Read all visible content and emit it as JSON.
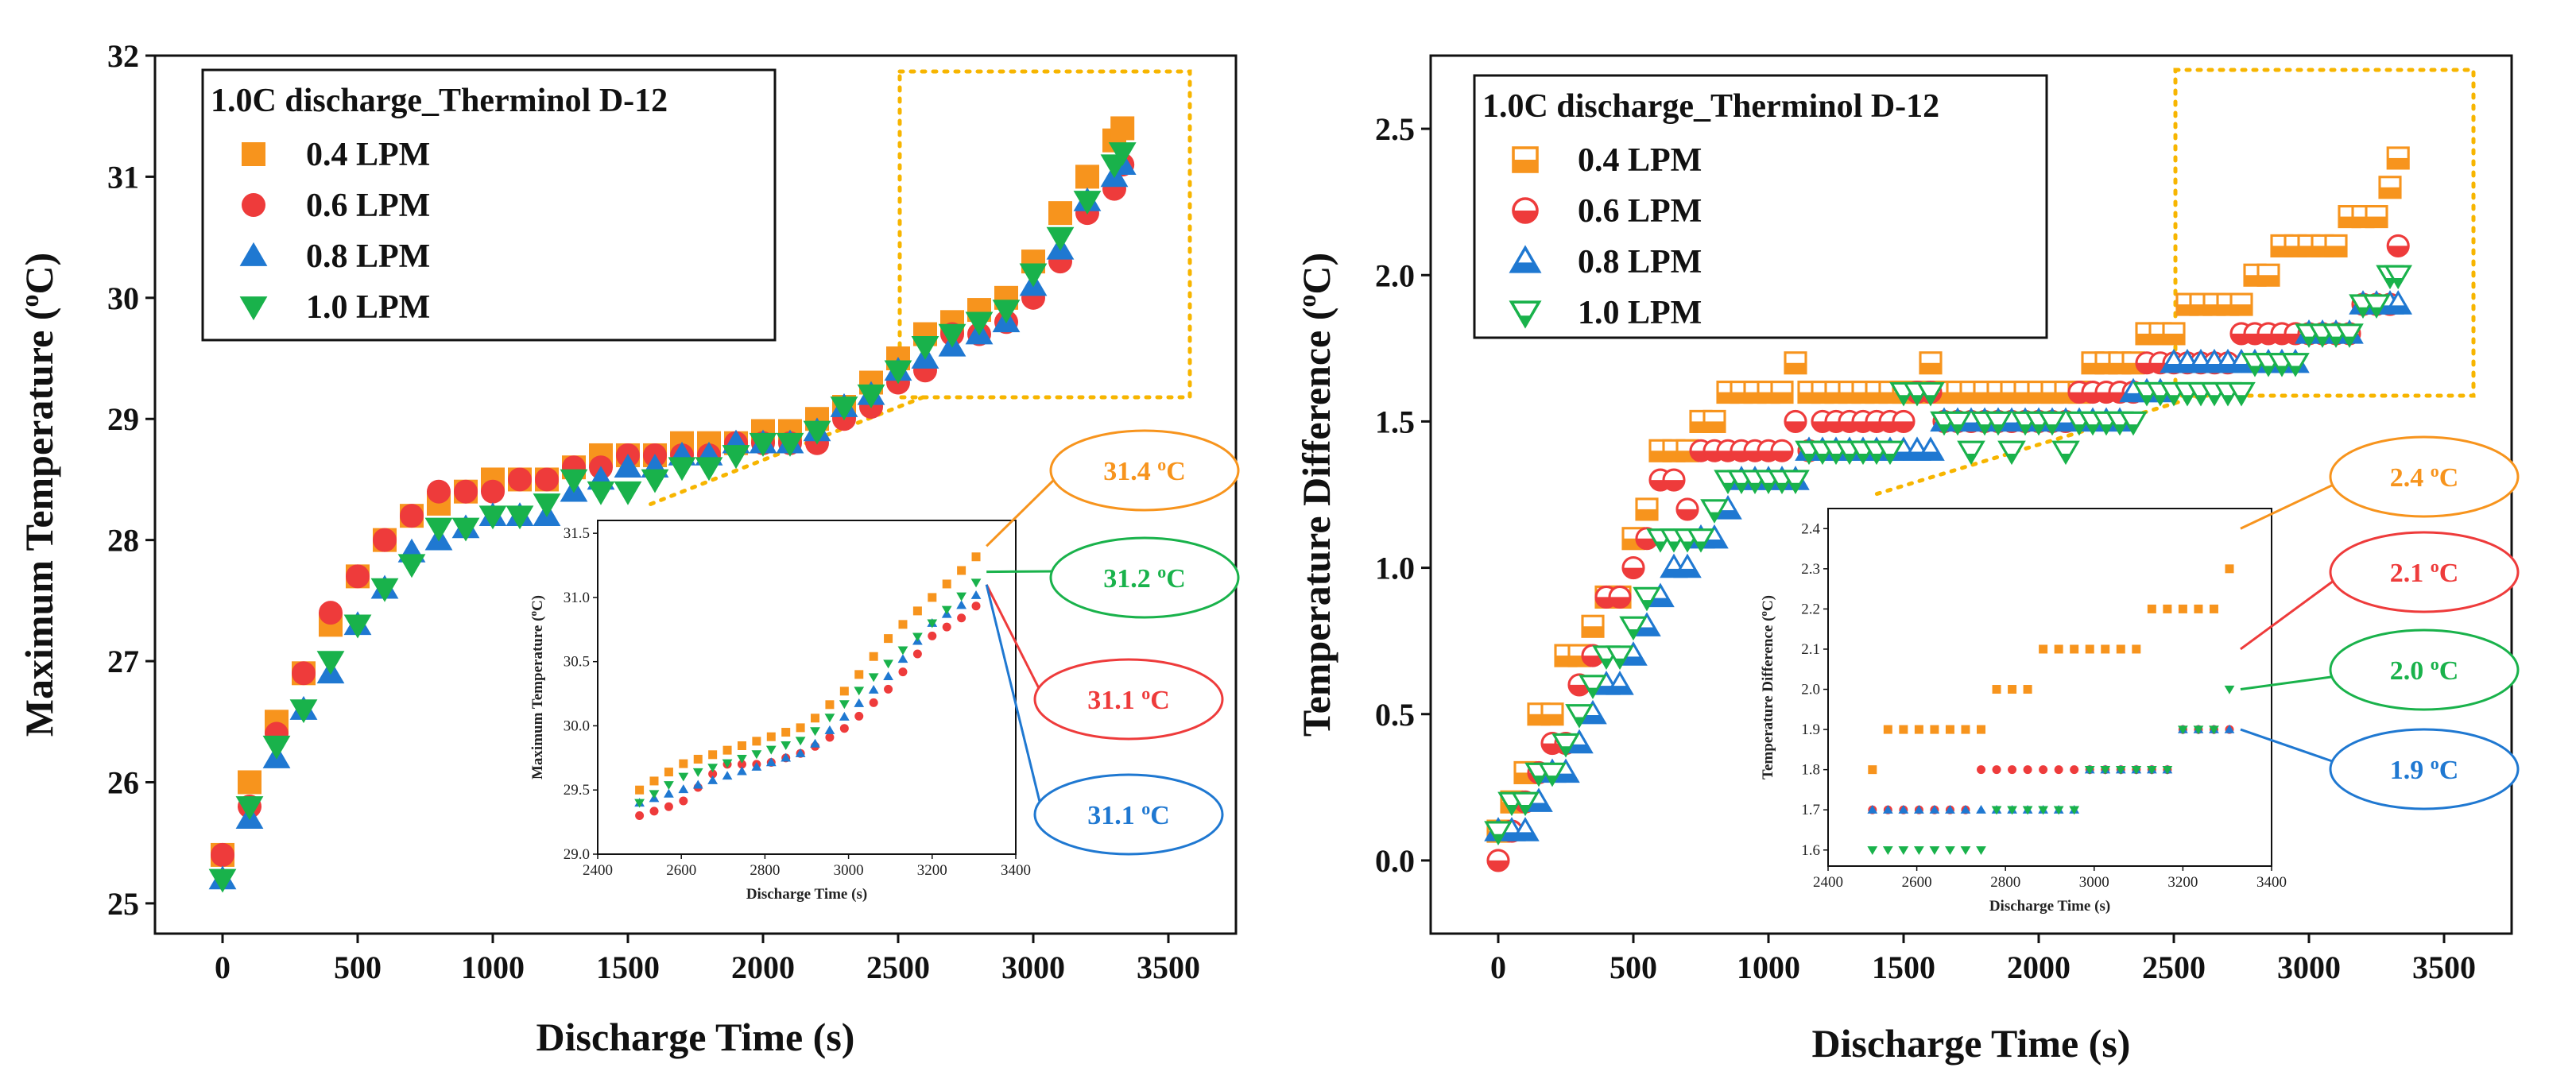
{
  "colors": {
    "lpm04": "#F7941D",
    "lpm06": "#EE3B3B",
    "lpm08": "#1F78D1",
    "lpm10": "#19B24B",
    "zoom_box": "#F7B500"
  },
  "chart_data": [
    {
      "type": "scatter",
      "xlabel": "Discharge Time (s)",
      "ylabel": "Maximum Temperature (°C)",
      "ylabel_parts": {
        "prefix": "Maximum Temperature (",
        "sup": "o",
        "suffix": "C)"
      },
      "xlim": [
        -250,
        3750
      ],
      "ylim": [
        24.75,
        32
      ],
      "xticks": [
        "0",
        "500",
        "1000",
        "1500",
        "2000",
        "2500",
        "3000",
        "3500"
      ],
      "yticks": [
        "25",
        "26",
        "27",
        "28",
        "29",
        "30",
        "31",
        "32"
      ],
      "legend_title": "1.0C discharge_Therminol D-12",
      "series": [
        {
          "name": "0.4 LPM",
          "marker": "square",
          "color": "#F7941D",
          "x": [
            0,
            100,
            200,
            300,
            400,
            500,
            600,
            700,
            800,
            900,
            1000,
            1100,
            1200,
            1300,
            1400,
            1500,
            1600,
            1700,
            1800,
            1900,
            2000,
            2100,
            2200,
            2300,
            2400,
            2500,
            2600,
            2700,
            2800,
            2900,
            3000,
            3100,
            3200,
            3300,
            3330
          ],
          "y": [
            25.4,
            26.0,
            26.5,
            26.9,
            27.3,
            27.7,
            28.0,
            28.2,
            28.3,
            28.4,
            28.5,
            28.5,
            28.5,
            28.6,
            28.7,
            28.7,
            28.7,
            28.8,
            28.8,
            28.8,
            28.9,
            28.9,
            29.0,
            29.1,
            29.3,
            29.5,
            29.7,
            29.8,
            29.9,
            30.0,
            30.3,
            30.7,
            31.0,
            31.3,
            31.4
          ]
        },
        {
          "name": "0.6 LPM",
          "marker": "circle",
          "color": "#EE3B3B",
          "x": [
            0,
            100,
            200,
            300,
            400,
            500,
            600,
            700,
            800,
            900,
            1000,
            1100,
            1200,
            1300,
            1400,
            1500,
            1600,
            1700,
            1800,
            1900,
            2000,
            2100,
            2200,
            2300,
            2400,
            2500,
            2600,
            2700,
            2800,
            2900,
            3000,
            3100,
            3200,
            3300,
            3330
          ],
          "y": [
            25.4,
            25.8,
            26.4,
            26.9,
            27.4,
            27.7,
            28.0,
            28.2,
            28.4,
            28.4,
            28.4,
            28.5,
            28.5,
            28.6,
            28.6,
            28.7,
            28.7,
            28.7,
            28.7,
            28.8,
            28.8,
            28.8,
            28.8,
            29.0,
            29.1,
            29.3,
            29.4,
            29.7,
            29.7,
            29.8,
            30.0,
            30.3,
            30.7,
            30.9,
            31.1
          ]
        },
        {
          "name": "0.8 LPM",
          "marker": "triangle-up",
          "color": "#1F78D1",
          "x": [
            0,
            100,
            200,
            300,
            400,
            500,
            600,
            700,
            800,
            900,
            1000,
            1100,
            1200,
            1300,
            1400,
            1500,
            1600,
            1700,
            1800,
            1900,
            2000,
            2100,
            2200,
            2300,
            2400,
            2500,
            2600,
            2700,
            2800,
            2900,
            3000,
            3100,
            3200,
            3300,
            3330
          ],
          "y": [
            25.2,
            25.7,
            26.2,
            26.6,
            26.9,
            27.3,
            27.6,
            27.9,
            28.0,
            28.1,
            28.2,
            28.2,
            28.2,
            28.4,
            28.5,
            28.6,
            28.6,
            28.7,
            28.7,
            28.8,
            28.8,
            28.8,
            28.9,
            29.1,
            29.2,
            29.4,
            29.5,
            29.6,
            29.7,
            29.8,
            30.1,
            30.4,
            30.8,
            31.0,
            31.1
          ]
        },
        {
          "name": "1.0 LPM",
          "marker": "triangle-down",
          "color": "#19B24B",
          "x": [
            0,
            100,
            200,
            300,
            400,
            500,
            600,
            700,
            800,
            900,
            1000,
            1100,
            1200,
            1300,
            1400,
            1500,
            1600,
            1700,
            1800,
            1900,
            2000,
            2100,
            2200,
            2300,
            2400,
            2500,
            2600,
            2700,
            2800,
            2900,
            3000,
            3100,
            3200,
            3300,
            3330
          ],
          "y": [
            25.2,
            25.8,
            26.3,
            26.6,
            27.0,
            27.3,
            27.6,
            27.8,
            28.1,
            28.1,
            28.2,
            28.2,
            28.3,
            28.5,
            28.4,
            28.4,
            28.5,
            28.6,
            28.6,
            28.7,
            28.8,
            28.8,
            28.9,
            29.1,
            29.2,
            29.4,
            29.6,
            29.7,
            29.8,
            29.9,
            30.2,
            30.5,
            30.8,
            31.1,
            31.2
          ]
        }
      ],
      "inset": {
        "xlabel": "Discharge Time (s)",
        "ylabel": "Maximum Temperature (°C)",
        "ylabel_parts": {
          "prefix": "Maximum Temperature (",
          "sup": "o",
          "suffix": "C)"
        },
        "xlim": [
          2400,
          3400
        ],
        "ylim": [
          29.0,
          31.6
        ],
        "xticks": [
          "2400",
          "2600",
          "2800",
          "3000",
          "3200",
          "3400"
        ],
        "yticks": [
          "29.0",
          "29.5",
          "30.0",
          "30.5",
          "31.0",
          "31.5"
        ],
        "x_start": 2500,
        "x_step": 35
      },
      "callouts": [
        {
          "text": "31.4 ",
          "sup": "o",
          "unit": "C",
          "color": "#F7941D"
        },
        {
          "text": "31.2 ",
          "sup": "o",
          "unit": "C",
          "color": "#19B24B"
        },
        {
          "text": "31.1 ",
          "sup": "o",
          "unit": "C",
          "color": "#EE3B3B"
        },
        {
          "text": "31.1 ",
          "sup": "o",
          "unit": "C",
          "color": "#1F78D1"
        }
      ]
    },
    {
      "type": "scatter",
      "xlabel": "Discharge Time (s)",
      "ylabel": "Temperature Difference (°C)",
      "ylabel_parts": {
        "prefix": "Temperature Difference (",
        "sup": "o",
        "suffix": "C)"
      },
      "xlim": [
        -250,
        3750
      ],
      "ylim": [
        -0.25,
        2.75
      ],
      "xticks": [
        "0",
        "500",
        "1000",
        "1500",
        "2000",
        "2500",
        "3000",
        "3500"
      ],
      "yticks": [
        "0.0",
        "0.5",
        "1.0",
        "1.5",
        "2.0",
        "2.5"
      ],
      "legend_title": "1.0C discharge_Therminol D-12",
      "series": [
        {
          "name": "0.4 LPM",
          "marker": "square-half",
          "color": "#F7941D",
          "x": [
            0,
            50,
            100,
            150,
            200,
            250,
            300,
            350,
            400,
            450,
            500,
            550,
            600,
            650,
            700,
            750,
            800,
            850,
            900,
            950,
            1000,
            1050,
            1100,
            1150,
            1200,
            1250,
            1300,
            1350,
            1400,
            1450,
            1500,
            1550,
            1600,
            1650,
            1700,
            1750,
            1800,
            1850,
            1900,
            1950,
            2000,
            2050,
            2100,
            2150,
            2200,
            2250,
            2300,
            2350,
            2400,
            2450,
            2500,
            2550,
            2600,
            2650,
            2700,
            2750,
            2800,
            2850,
            2900,
            2950,
            3000,
            3050,
            3100,
            3150,
            3200,
            3250,
            3300,
            3330
          ],
          "y": [
            0.1,
            0.2,
            0.3,
            0.5,
            0.5,
            0.7,
            0.7,
            0.8,
            0.9,
            0.9,
            1.1,
            1.2,
            1.4,
            1.4,
            1.4,
            1.5,
            1.5,
            1.6,
            1.6,
            1.6,
            1.6,
            1.6,
            1.7,
            1.6,
            1.6,
            1.6,
            1.6,
            1.6,
            1.6,
            1.6,
            1.6,
            1.6,
            1.7,
            1.6,
            1.6,
            1.6,
            1.6,
            1.6,
            1.6,
            1.6,
            1.6,
            1.6,
            1.6,
            1.6,
            1.7,
            1.7,
            1.7,
            1.7,
            1.8,
            1.8,
            1.8,
            1.9,
            1.9,
            1.9,
            1.9,
            1.9,
            2.0,
            2.0,
            2.1,
            2.1,
            2.1,
            2.1,
            2.1,
            2.2,
            2.2,
            2.2,
            2.3,
            2.4
          ]
        },
        {
          "name": "0.6 LPM",
          "marker": "circle-half",
          "color": "#EE3B3B",
          "x": [
            0,
            50,
            100,
            150,
            200,
            250,
            300,
            350,
            400,
            450,
            500,
            550,
            600,
            650,
            700,
            750,
            800,
            850,
            900,
            950,
            1000,
            1050,
            1100,
            1150,
            1200,
            1250,
            1300,
            1350,
            1400,
            1450,
            1500,
            1550,
            1600,
            1650,
            1700,
            1750,
            1800,
            1850,
            1900,
            1950,
            2000,
            2050,
            2100,
            2150,
            2200,
            2250,
            2300,
            2350,
            2400,
            2450,
            2500,
            2550,
            2600,
            2650,
            2700,
            2750,
            2800,
            2850,
            2900,
            2950,
            3000,
            3050,
            3100,
            3150,
            3200,
            3250,
            3300,
            3330
          ],
          "y": [
            0.0,
            0.1,
            0.2,
            0.3,
            0.4,
            0.4,
            0.6,
            0.7,
            0.9,
            0.9,
            1.0,
            1.1,
            1.3,
            1.3,
            1.2,
            1.4,
            1.4,
            1.4,
            1.4,
            1.4,
            1.4,
            1.4,
            1.5,
            1.4,
            1.5,
            1.5,
            1.5,
            1.5,
            1.5,
            1.5,
            1.5,
            1.6,
            1.6,
            1.5,
            1.5,
            1.5,
            1.5,
            1.5,
            1.5,
            1.5,
            1.5,
            1.5,
            1.5,
            1.6,
            1.6,
            1.6,
            1.6,
            1.6,
            1.7,
            1.7,
            1.7,
            1.7,
            1.7,
            1.7,
            1.7,
            1.8,
            1.8,
            1.8,
            1.8,
            1.8,
            1.8,
            1.8,
            1.8,
            1.8,
            1.9,
            1.9,
            1.9,
            2.1
          ]
        },
        {
          "name": "0.8 LPM",
          "marker": "triangle-up-half",
          "color": "#1F78D1",
          "x": [
            0,
            50,
            100,
            150,
            200,
            250,
            300,
            350,
            400,
            450,
            500,
            550,
            600,
            650,
            700,
            750,
            800,
            850,
            900,
            950,
            1000,
            1050,
            1100,
            1150,
            1200,
            1250,
            1300,
            1350,
            1400,
            1450,
            1500,
            1550,
            1600,
            1650,
            1700,
            1750,
            1800,
            1850,
            1900,
            1950,
            2000,
            2050,
            2100,
            2150,
            2200,
            2250,
            2300,
            2350,
            2400,
            2450,
            2500,
            2550,
            2600,
            2650,
            2700,
            2750,
            2800,
            2850,
            2900,
            2950,
            3000,
            3050,
            3100,
            3150,
            3200,
            3250,
            3300,
            3330
          ],
          "y": [
            0.1,
            0.1,
            0.1,
            0.2,
            0.3,
            0.3,
            0.4,
            0.5,
            0.6,
            0.6,
            0.7,
            0.8,
            0.9,
            1.0,
            1.0,
            1.1,
            1.1,
            1.2,
            1.3,
            1.3,
            1.3,
            1.3,
            1.3,
            1.4,
            1.4,
            1.4,
            1.4,
            1.4,
            1.4,
            1.4,
            1.4,
            1.4,
            1.4,
            1.5,
            1.5,
            1.5,
            1.5,
            1.5,
            1.5,
            1.5,
            1.5,
            1.5,
            1.5,
            1.5,
            1.5,
            1.5,
            1.5,
            1.6,
            1.6,
            1.6,
            1.7,
            1.7,
            1.7,
            1.7,
            1.7,
            1.7,
            1.7,
            1.7,
            1.7,
            1.7,
            1.8,
            1.8,
            1.8,
            1.8,
            1.9,
            1.9,
            1.9,
            1.9
          ]
        },
        {
          "name": "1.0 LPM",
          "marker": "triangle-down-half",
          "color": "#19B24B",
          "x": [
            0,
            50,
            100,
            150,
            200,
            250,
            300,
            350,
            400,
            450,
            500,
            550,
            600,
            650,
            700,
            750,
            800,
            850,
            900,
            950,
            1000,
            1050,
            1100,
            1150,
            1200,
            1250,
            1300,
            1350,
            1400,
            1450,
            1500,
            1550,
            1600,
            1650,
            1700,
            1750,
            1800,
            1850,
            1900,
            1950,
            2000,
            2050,
            2100,
            2150,
            2200,
            2250,
            2300,
            2350,
            2400,
            2450,
            2500,
            2550,
            2600,
            2650,
            2700,
            2750,
            2800,
            2850,
            2900,
            2950,
            3000,
            3050,
            3100,
            3150,
            3200,
            3250,
            3300,
            3330
          ],
          "y": [
            0.1,
            0.2,
            0.2,
            0.3,
            0.3,
            0.4,
            0.5,
            0.6,
            0.7,
            0.7,
            0.8,
            0.9,
            1.1,
            1.1,
            1.1,
            1.1,
            1.2,
            1.3,
            1.3,
            1.3,
            1.3,
            1.3,
            1.3,
            1.4,
            1.4,
            1.4,
            1.4,
            1.4,
            1.4,
            1.4,
            1.6,
            1.6,
            1.6,
            1.5,
            1.5,
            1.4,
            1.5,
            1.5,
            1.4,
            1.5,
            1.5,
            1.5,
            1.4,
            1.5,
            1.5,
            1.5,
            1.5,
            1.5,
            1.6,
            1.6,
            1.6,
            1.6,
            1.6,
            1.6,
            1.6,
            1.6,
            1.7,
            1.7,
            1.7,
            1.7,
            1.8,
            1.8,
            1.8,
            1.8,
            1.9,
            1.9,
            2.0,
            2.0
          ]
        }
      ],
      "inset": {
        "xlabel": "Discharge Time (s)",
        "ylabel": "Temperature Difference (°C)",
        "ylabel_parts": {
          "prefix": "Temperature Difference (",
          "sup": "o",
          "suffix": "C)"
        },
        "xlim": [
          2400,
          3400
        ],
        "ylim": [
          1.56,
          2.45
        ],
        "xticks": [
          "2400",
          "2600",
          "2800",
          "3000",
          "3200",
          "3400"
        ],
        "yticks": [
          "1.6",
          "1.7",
          "1.8",
          "1.9",
          "2.0",
          "2.1",
          "2.2",
          "2.3",
          "2.4"
        ],
        "x_start": 2500,
        "x_step": 35
      },
      "callouts": [
        {
          "text": "2.4 ",
          "sup": "o",
          "unit": "C",
          "color": "#F7941D"
        },
        {
          "text": "2.1 ",
          "sup": "o",
          "unit": "C",
          "color": "#EE3B3B"
        },
        {
          "text": "2.0 ",
          "sup": "o",
          "unit": "C",
          "color": "#19B24B"
        },
        {
          "text": "1.9 ",
          "sup": "o",
          "unit": "C",
          "color": "#1F78D1"
        }
      ]
    }
  ]
}
